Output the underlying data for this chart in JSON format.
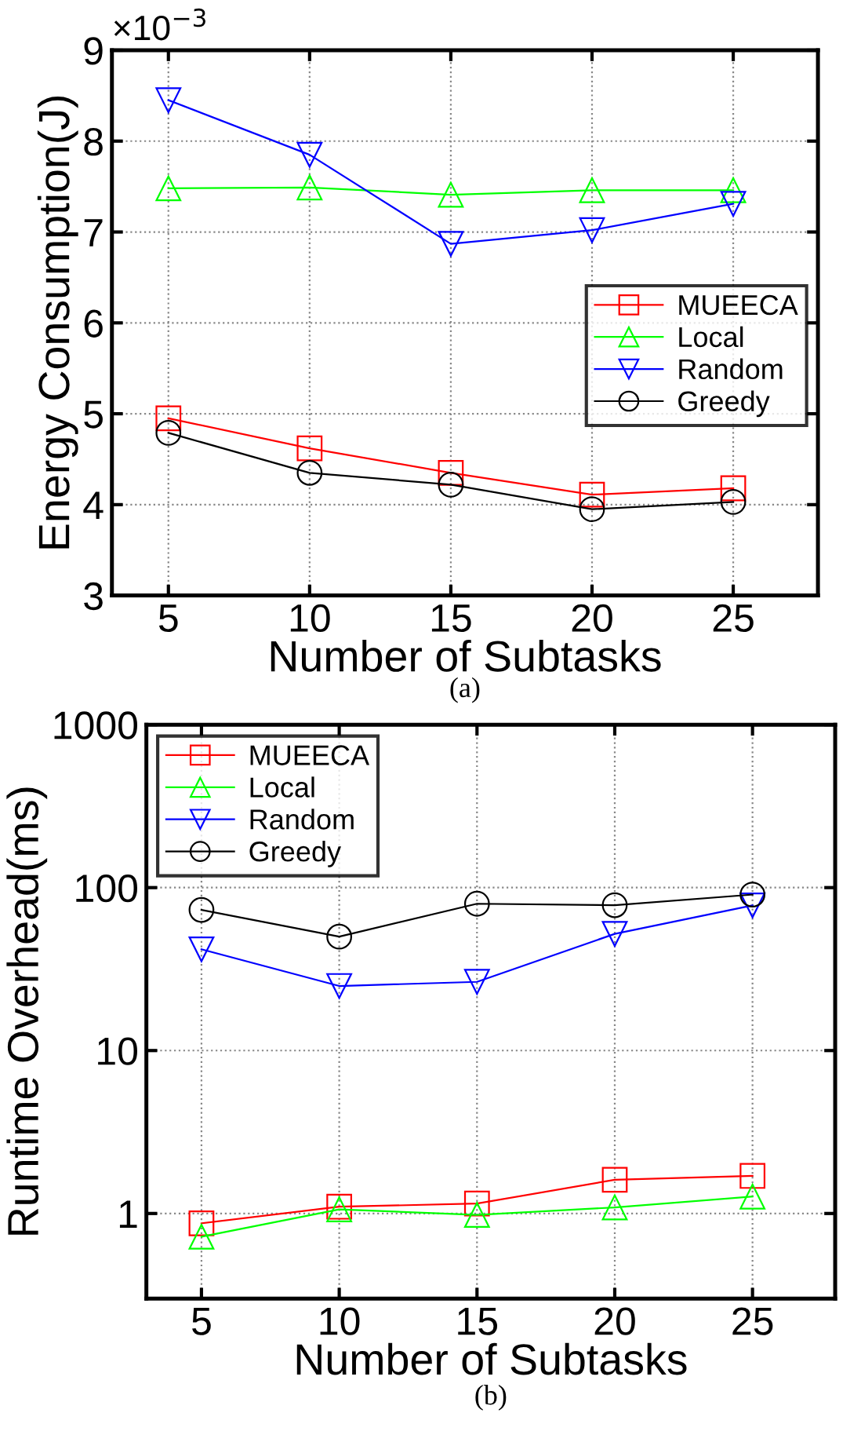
{
  "chart_data": [
    {
      "type": "line",
      "xlabel": "Number of Subtasks",
      "ylabel": "Energy Consumption(J)",
      "x": [
        5,
        10,
        15,
        20,
        25
      ],
      "xlim": [
        3,
        28
      ],
      "xticks": [
        5,
        10,
        15,
        20,
        25
      ],
      "ylim": [
        3,
        9
      ],
      "yticks": [
        3,
        4,
        5,
        6,
        7,
        8,
        9
      ],
      "grid": true,
      "legend": "right",
      "annotations": [
        "×10$^{−3}$",
        "(a)"
      ],
      "series": [
        {
          "name": "MUEECA",
          "color": "#ff0000",
          "marker": "square",
          "values": [
            4.95,
            4.62,
            4.35,
            4.11,
            4.18
          ]
        },
        {
          "name": "Local",
          "color": "#00ff00",
          "marker": "triangle",
          "values": [
            7.48,
            7.49,
            7.41,
            7.46,
            7.46
          ]
        },
        {
          "name": "Random",
          "color": "#0000ff",
          "marker": "triangle_down",
          "values": [
            8.45,
            7.85,
            6.87,
            7.02,
            7.31
          ]
        },
        {
          "name": "Greedy",
          "color": "#000000",
          "marker": "circle",
          "values": [
            4.79,
            4.35,
            4.22,
            3.95,
            4.03
          ]
        }
      ]
    },
    {
      "type": "line",
      "xlabel": "Number of Subtasks",
      "ylabel": "Runtime Overhead(ms)",
      "log": "y",
      "x": [
        5,
        10,
        15,
        20,
        25
      ],
      "xlim": [
        3,
        28
      ],
      "xticks": [
        5,
        10,
        15,
        20,
        25
      ],
      "ylim": [
        0.3,
        1000
      ],
      "yticks": [
        1,
        10,
        100,
        1000
      ],
      "grid": true,
      "legend": "top left",
      "annotations": [
        "(b)"
      ],
      "series": [
        {
          "name": "MUEECA",
          "color": "#ff0000",
          "marker": "square",
          "values": [
            0.87,
            1.1,
            1.15,
            1.61,
            1.7
          ]
        },
        {
          "name": "Local",
          "color": "#00ff00",
          "marker": "triangle",
          "values": [
            0.72,
            1.06,
            0.98,
            1.09,
            1.27
          ]
        },
        {
          "name": "Random",
          "color": "#0000ff",
          "marker": "triangle_down",
          "values": [
            41.8,
            24.9,
            26.4,
            52,
            77.8
          ]
        },
        {
          "name": "Greedy",
          "color": "#000000",
          "marker": "circle",
          "values": [
            73,
            50,
            79.6,
            78,
            90.6
          ]
        }
      ]
    }
  ]
}
